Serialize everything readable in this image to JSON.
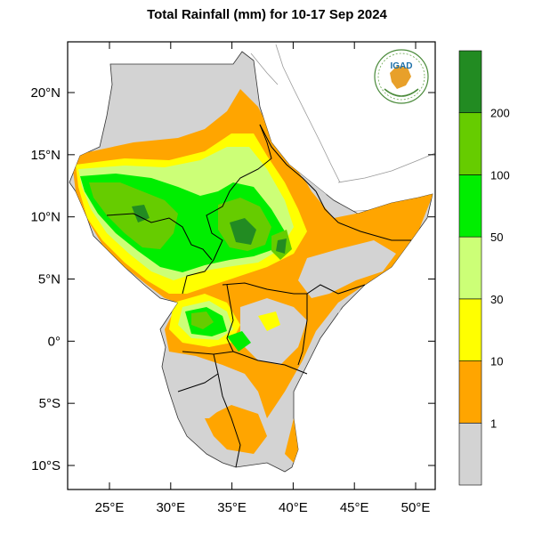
{
  "title": "Total Rainfall (mm) for 10-17 Sep 2024",
  "logo_text": "IGAD",
  "map": {
    "lon_range": [
      22,
      51.5
    ],
    "lat_range": [
      -12,
      24
    ],
    "x_ticks": [
      {
        "value": 25,
        "label": "25°E"
      },
      {
        "value": 30,
        "label": "30°E"
      },
      {
        "value": 35,
        "label": "35°E"
      },
      {
        "value": 40,
        "label": "40°E"
      },
      {
        "value": 45,
        "label": "45°E"
      },
      {
        "value": 50,
        "label": "50°E"
      }
    ],
    "y_ticks": [
      {
        "value": 20,
        "label": "20°N"
      },
      {
        "value": 15,
        "label": "15°N"
      },
      {
        "value": 10,
        "label": "10°N"
      },
      {
        "value": 5,
        "label": "5°N"
      },
      {
        "value": 0,
        "label": "0°"
      },
      {
        "value": -5,
        "label": "5°S"
      },
      {
        "value": -10,
        "label": "10°S"
      }
    ]
  },
  "colorbar": {
    "bins": [
      {
        "color": "#d3d3d3"
      },
      {
        "color": "#ffa500"
      },
      {
        "color": "#ffff00"
      },
      {
        "color": "#ccff77"
      },
      {
        "color": "#00ee00"
      },
      {
        "color": "#66cc00"
      },
      {
        "color": "#228b22"
      }
    ],
    "labels": [
      "1",
      "10",
      "30",
      "50",
      "100",
      "200"
    ]
  }
}
